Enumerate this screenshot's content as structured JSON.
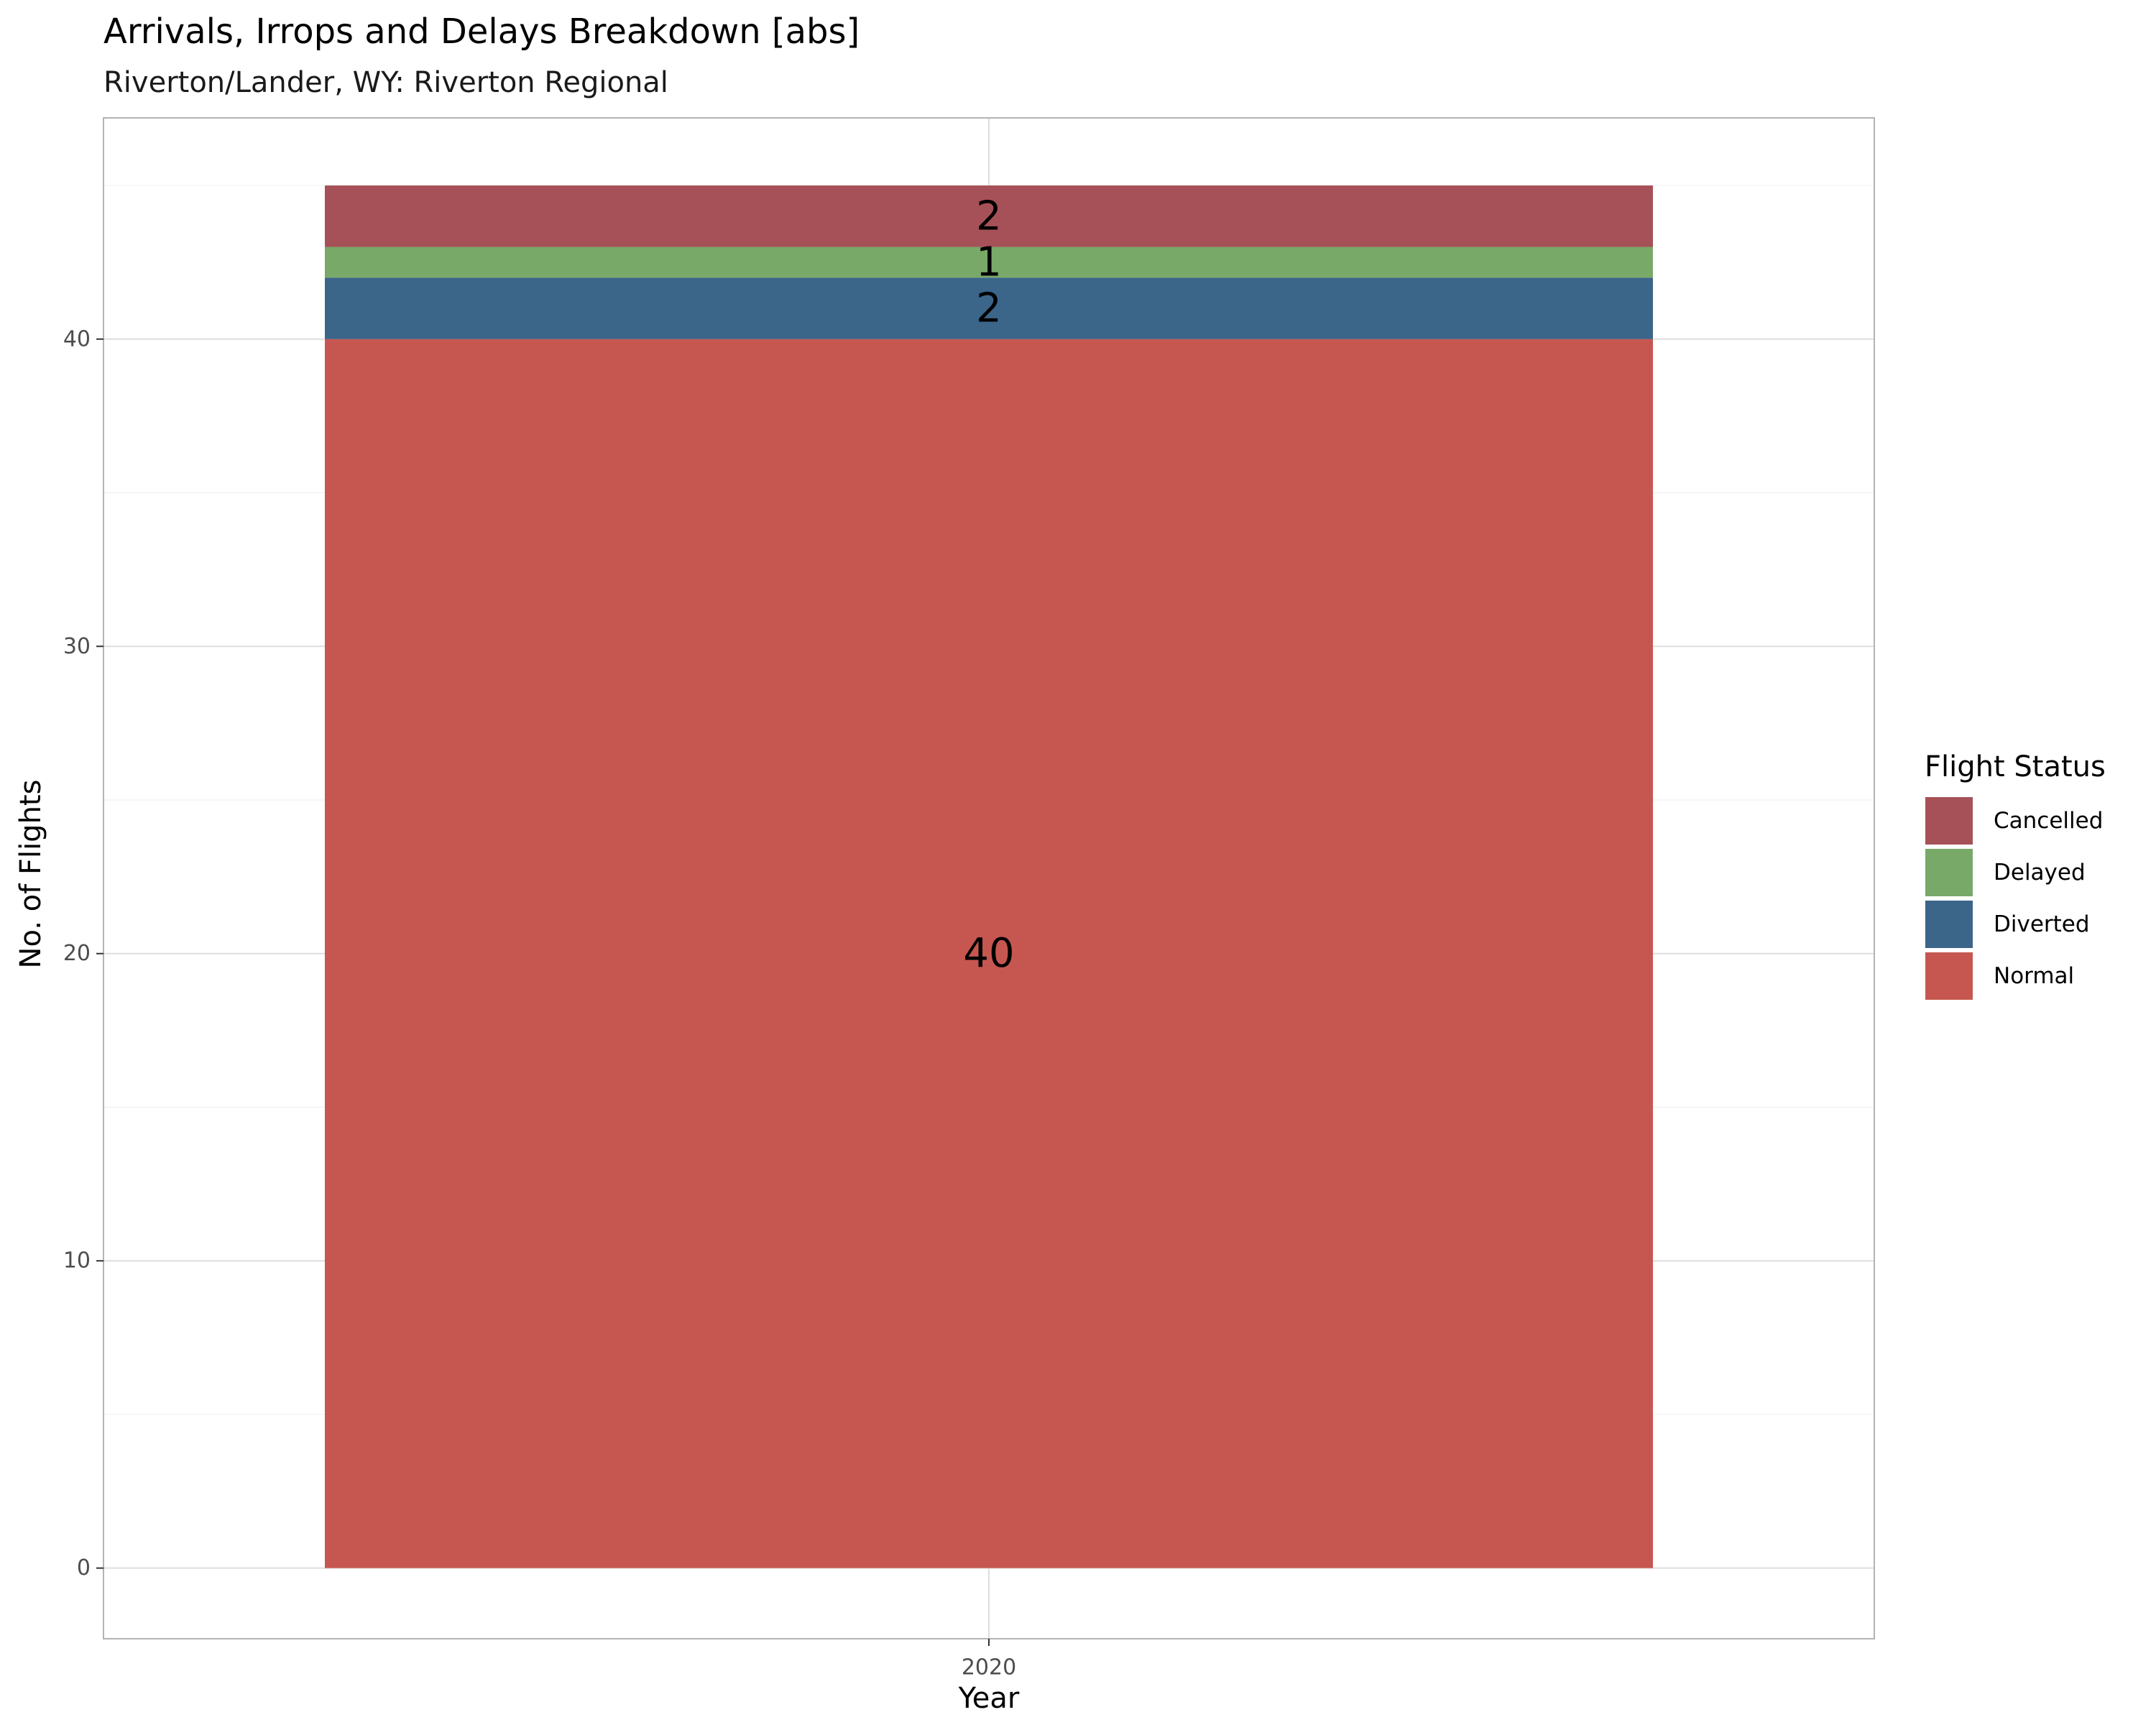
{
  "chart_data": {
    "type": "bar",
    "stacked": true,
    "title": "Arrivals, Irrops and Delays Breakdown [abs]",
    "subtitle": "Riverton/Lander, WY: Riverton Regional",
    "xlabel": "Year",
    "ylabel": "No. of Flights",
    "categories": [
      "2020"
    ],
    "ylim": [
      -2.3,
      47.2
    ],
    "yticks": [
      0,
      10,
      20,
      30,
      40
    ],
    "yticklabels": [
      "0",
      "10",
      "20",
      "30",
      "40"
    ],
    "grid": true,
    "legend": {
      "title": "Flight Status",
      "position": "right"
    },
    "series": [
      {
        "name": "Normal",
        "values": [
          40
        ],
        "color": "#C65750"
      },
      {
        "name": "Diverted",
        "values": [
          2
        ],
        "color": "#3B6589"
      },
      {
        "name": "Delayed",
        "values": [
          1
        ],
        "color": "#78A968"
      },
      {
        "name": "Cancelled",
        "values": [
          2
        ],
        "color": "#A65157"
      }
    ],
    "legend_order": [
      "Cancelled",
      "Delayed",
      "Diverted",
      "Normal"
    ]
  }
}
